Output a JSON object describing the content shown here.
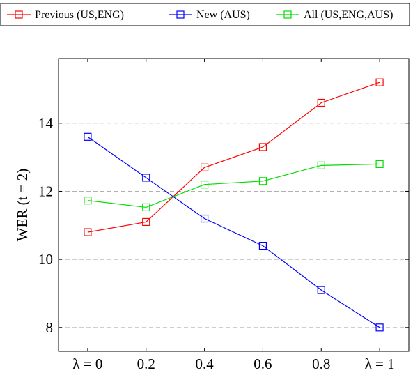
{
  "chart_data": {
    "type": "line",
    "x": [
      0,
      0.2,
      0.4,
      0.6,
      0.8,
      1
    ],
    "x_tick_labels": [
      "λ = 0",
      "0.2",
      "0.4",
      "0.6",
      "0.8",
      "λ = 1"
    ],
    "xlim": [
      -0.1,
      1.1
    ],
    "y_ticks": [
      8,
      10,
      12,
      14
    ],
    "y_tick_labels": [
      "8",
      "10",
      "12",
      "14"
    ],
    "ylim": [
      7.3,
      15.9
    ],
    "ylabel": "WER (t = 2)",
    "grid": "horizontal dashed",
    "legend_placement": "top",
    "marker": "square",
    "series": [
      {
        "name": "Previous (US,ENG)",
        "color": "#ff0000",
        "values": [
          10.8,
          11.1,
          12.7,
          13.3,
          14.6,
          15.2
        ]
      },
      {
        "name": "New (AUS)",
        "color": "#0000ff",
        "values": [
          13.6,
          12.4,
          11.2,
          10.4,
          9.1,
          8.0
        ]
      },
      {
        "name": "All (US,ENG,AUS)",
        "color": "#00dd00",
        "values": [
          11.73,
          11.53,
          12.2,
          12.3,
          12.76,
          12.8
        ]
      }
    ]
  }
}
